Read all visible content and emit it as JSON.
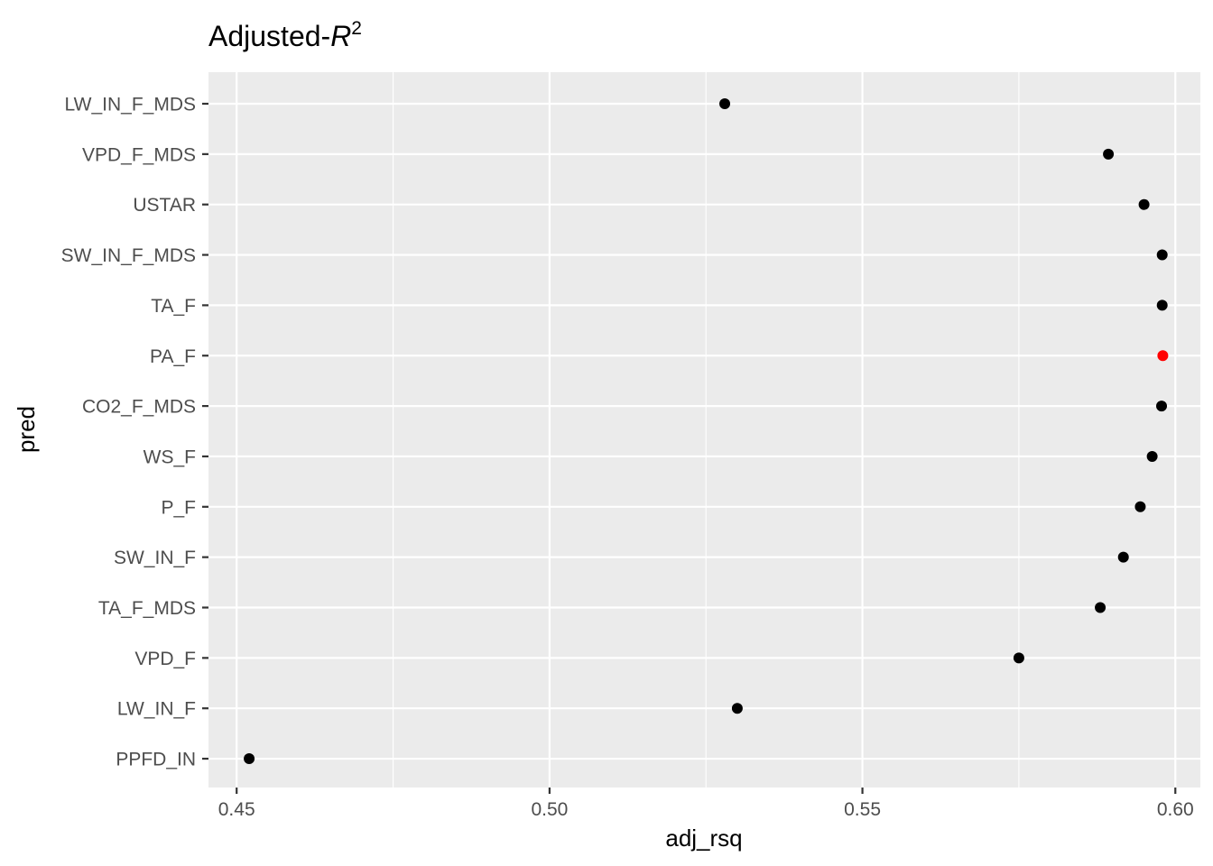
{
  "chart_data": {
    "type": "scatter",
    "title": "Adjusted-",
    "title_math": "R",
    "title_sup": "2",
    "xlabel": "adj_rsq",
    "ylabel": "pred",
    "x_ticks": [
      0.45,
      0.5,
      0.55,
      0.6
    ],
    "x_tick_labels": [
      "0.45",
      "0.50",
      "0.55",
      "0.60"
    ],
    "xlim": [
      0.4455,
      0.604
    ],
    "grid": true,
    "categories": [
      "LW_IN_F_MDS",
      "VPD_F_MDS",
      "USTAR",
      "SW_IN_F_MDS",
      "TA_F",
      "PA_F",
      "CO2_F_MDS",
      "WS_F",
      "P_F",
      "SW_IN_F",
      "TA_F_MDS",
      "VPD_F",
      "LW_IN_F",
      "PPFD_IN"
    ],
    "points": [
      {
        "pred": "LW_IN_F_MDS",
        "adj_rsq": 0.528
      },
      {
        "pred": "VPD_F_MDS",
        "adj_rsq": 0.5893
      },
      {
        "pred": "USTAR",
        "adj_rsq": 0.595
      },
      {
        "pred": "SW_IN_F_MDS",
        "adj_rsq": 0.5979
      },
      {
        "pred": "TA_F",
        "adj_rsq": 0.5979
      },
      {
        "pred": "PA_F",
        "adj_rsq": 0.598,
        "highlight": true
      },
      {
        "pred": "CO2_F_MDS",
        "adj_rsq": 0.5978
      },
      {
        "pred": "WS_F",
        "adj_rsq": 0.5963
      },
      {
        "pred": "P_F",
        "adj_rsq": 0.5944
      },
      {
        "pred": "SW_IN_F",
        "adj_rsq": 0.5917
      },
      {
        "pred": "TA_F_MDS",
        "adj_rsq": 0.588
      },
      {
        "pred": "VPD_F",
        "adj_rsq": 0.575
      },
      {
        "pred": "LW_IN_F",
        "adj_rsq": 0.53
      },
      {
        "pred": "PPFD_IN",
        "adj_rsq": 0.452
      }
    ],
    "colors": {
      "point": "#000000",
      "highlight": "#ff0000",
      "panel_bg": "#ebebeb",
      "grid": "#ffffff"
    }
  }
}
